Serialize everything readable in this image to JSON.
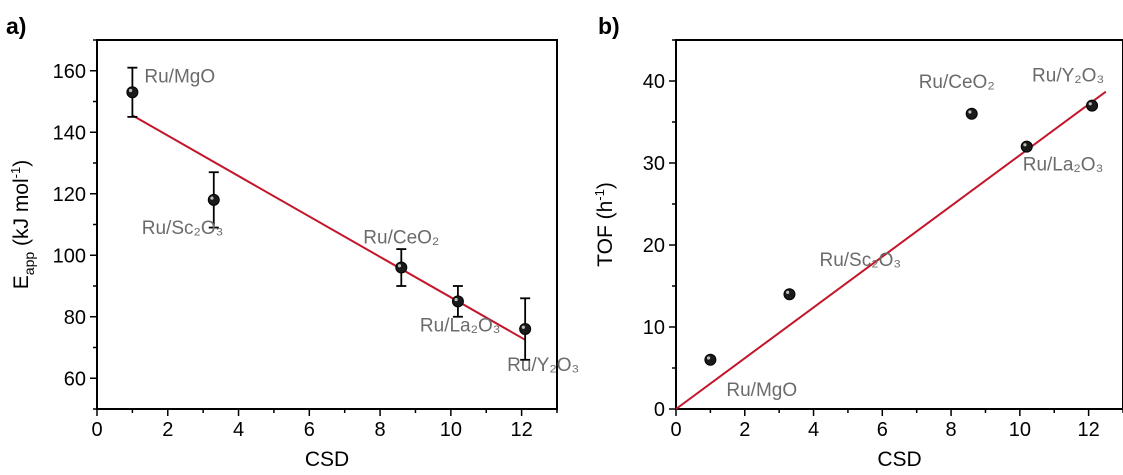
{
  "chart_data": [
    {
      "panel_label": "a)",
      "type": "scatter",
      "xlabel": "CSD",
      "ylabel": "E",
      "ylabel_sub": "app",
      "ylabel_unit": " (kJ mol",
      "ylabel_unit_sup": "-1",
      "ylabel_close": ")",
      "xlim": [
        0,
        13
      ],
      "ylim": [
        50,
        170
      ],
      "xticks": [
        0,
        2,
        4,
        6,
        8,
        10,
        12
      ],
      "yticks": [
        60,
        80,
        100,
        120,
        140,
        160
      ],
      "points": [
        {
          "x": 1.0,
          "y": 153,
          "err": 8,
          "label": "Ru/MgO"
        },
        {
          "x": 3.3,
          "y": 118,
          "err": 9,
          "label": "Ru/Sc₂O₃"
        },
        {
          "x": 8.6,
          "y": 96,
          "err": 6,
          "label": "Ru/CeO₂"
        },
        {
          "x": 10.2,
          "y": 85,
          "err": 5,
          "label": "Ru/La₂O₃"
        },
        {
          "x": 12.1,
          "y": 76,
          "err": 10,
          "label": "Ru/Y₂O₃"
        }
      ],
      "fit": {
        "x": [
          1.0,
          12.1
        ],
        "y": [
          145.5,
          72.5
        ]
      },
      "fit_color": "#c4162a"
    },
    {
      "panel_label": "b)",
      "type": "scatter",
      "xlabel": "CSD",
      "ylabel": "TOF (h",
      "ylabel_sup": "-1",
      "ylabel_close": ")",
      "xlim": [
        0,
        13
      ],
      "ylim": [
        0,
        45
      ],
      "xticks": [
        0,
        2,
        4,
        6,
        8,
        10,
        12
      ],
      "yticks": [
        0,
        10,
        20,
        30,
        40
      ],
      "points": [
        {
          "x": 1.0,
          "y": 6,
          "label": "Ru/MgO"
        },
        {
          "x": 3.3,
          "y": 14,
          "label": "Ru/Sc₂O₃"
        },
        {
          "x": 8.6,
          "y": 36,
          "label": "Ru/CeO₂"
        },
        {
          "x": 10.2,
          "y": 32,
          "label": "Ru/La₂O₃"
        },
        {
          "x": 12.1,
          "y": 37,
          "label": "Ru/Y₂O₃"
        }
      ],
      "fit": {
        "x": [
          0,
          12.5
        ],
        "y": [
          0,
          38.7
        ]
      },
      "fit_color": "#c4162a"
    }
  ]
}
